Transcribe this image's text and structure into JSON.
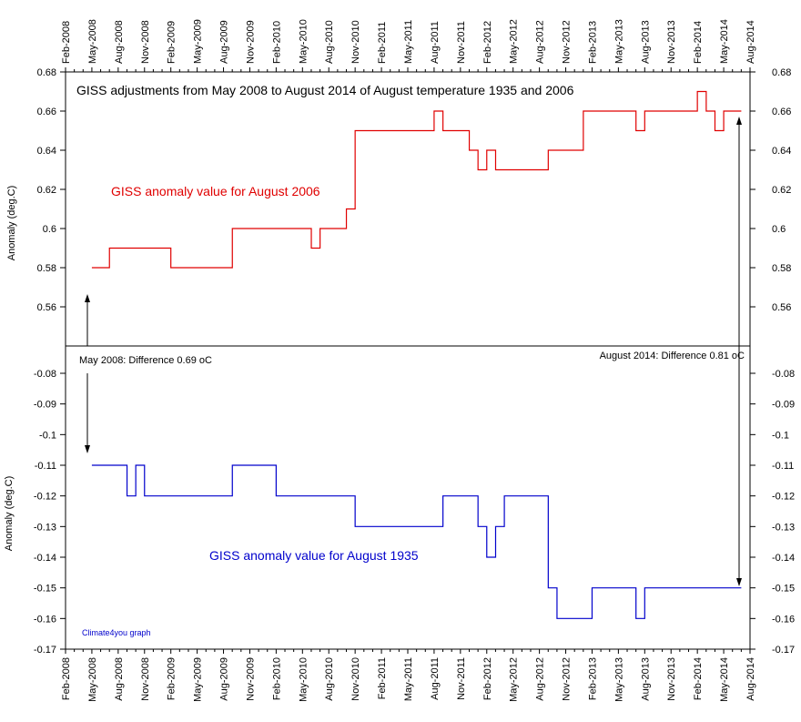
{
  "chart_data": [
    {
      "type": "line",
      "panel": "upper",
      "title": "GISS adjustments from May 2008 to August 2014 of August temperature 1935 and 2006",
      "ylabel": "Anomaly (deg.C)",
      "ylim": [
        0.54,
        0.68
      ],
      "yticks": [
        "0.68",
        "0.66",
        "0.64",
        "0.62",
        "0.6",
        "0.58",
        "0.56"
      ],
      "yticks_right": [
        "0.68",
        "0.66",
        "0.64",
        "0.62",
        "0.6",
        "0.58",
        "0.56"
      ],
      "series": [
        {
          "name": "GISS anomaly value for August 2006",
          "color": "#e00000",
          "step": true,
          "x": [
            2008.333,
            2008.5,
            2009.083,
            2009.667,
            2010.417,
            2010.5,
            2010.75,
            2010.833,
            2011.583,
            2011.667,
            2011.917,
            2012.0,
            2012.083,
            2012.167,
            2012.667,
            2013.0,
            2013.5,
            2013.583,
            2014.083,
            2014.167,
            2014.25,
            2014.333,
            2014.5
          ],
          "y": [
            0.58,
            0.59,
            0.58,
            0.6,
            0.59,
            0.6,
            0.61,
            0.65,
            0.66,
            0.65,
            0.64,
            0.63,
            0.64,
            0.63,
            0.64,
            0.66,
            0.65,
            0.66,
            0.67,
            0.66,
            0.65,
            0.66,
            0.66
          ]
        }
      ],
      "annotations": [
        "May 2008: Difference 0.69 oC",
        "August 2014: Difference 0.81 oC"
      ]
    },
    {
      "type": "line",
      "panel": "lower",
      "ylabel": "Anomaly (deg.C)",
      "ylim": [
        -0.17,
        -0.08
      ],
      "yticks": [
        "-0.08",
        "-0.09",
        "-0.1",
        "-0.11",
        "-0.12",
        "-0.13",
        "-0.14",
        "-0.15",
        "-0.16",
        "-0.17"
      ],
      "yticks_right": [
        "-0.08",
        "-0.09",
        "-0.1",
        "-0.11",
        "-0.12",
        "-0.13",
        "-0.14",
        "-0.15",
        "-0.16",
        "-0.17"
      ],
      "series": [
        {
          "name": "GISS anomaly value for August 1935",
          "color": "#0000cc",
          "step": true,
          "x": [
            2008.333,
            2008.667,
            2008.75,
            2008.833,
            2009.667,
            2010.083,
            2010.833,
            2011.667,
            2012.0,
            2012.083,
            2012.167,
            2012.25,
            2012.667,
            2012.75,
            2013.083,
            2013.5,
            2013.583,
            2014.5
          ],
          "y": [
            -0.11,
            -0.12,
            -0.11,
            -0.12,
            -0.11,
            -0.12,
            -0.13,
            -0.12,
            -0.13,
            -0.14,
            -0.13,
            -0.12,
            -0.15,
            -0.16,
            -0.15,
            -0.16,
            -0.15,
            -0.15
          ]
        }
      ]
    }
  ],
  "x_axis": {
    "tick_labels": [
      "Feb-2008",
      "May-2008",
      "Aug-2008",
      "Nov-2008",
      "Feb-2009",
      "May-2009",
      "Aug-2009",
      "Nov-2009",
      "Feb-2010",
      "May-2010",
      "Aug-2010",
      "Nov-2010",
      "Feb-2011",
      "May-2011",
      "Aug-2011",
      "Nov-2011",
      "Feb-2012",
      "May-2012",
      "Aug-2012",
      "Nov-2012",
      "Feb-2013",
      "May-2013",
      "Aug-2013",
      "Nov-2013",
      "Feb-2014",
      "May-2014",
      "Aug-2014"
    ],
    "xlim": [
      2008.083,
      2014.583
    ]
  },
  "credit": "Climate4you graph",
  "colors": {
    "upper_series": "#e00000",
    "lower_series": "#0000cc",
    "axis": "#000000",
    "credit": "#0000cc"
  }
}
